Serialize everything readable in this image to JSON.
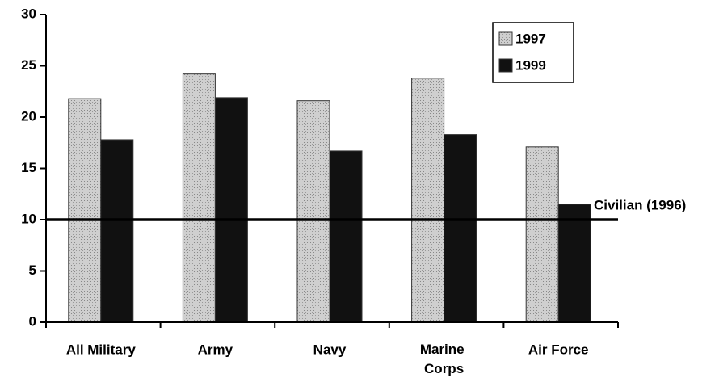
{
  "chart_data": {
    "type": "bar",
    "categories": [
      "All Military",
      "Army",
      "Navy",
      "Marine Corps",
      "Air Force"
    ],
    "series": [
      {
        "name": "1997",
        "color": "#c4c4c4",
        "values": [
          21.8,
          24.2,
          21.6,
          23.8,
          17.1
        ]
      },
      {
        "name": "1999",
        "color": "#111111",
        "values": [
          17.8,
          21.9,
          16.7,
          18.3,
          11.5
        ]
      }
    ],
    "reference_lines": [
      {
        "label": "Civilian (1996)",
        "value": 10
      }
    ],
    "ylim": [
      0,
      30
    ],
    "yticks": [
      0,
      5,
      10,
      15,
      20,
      25,
      30
    ],
    "legend": "upper right"
  }
}
